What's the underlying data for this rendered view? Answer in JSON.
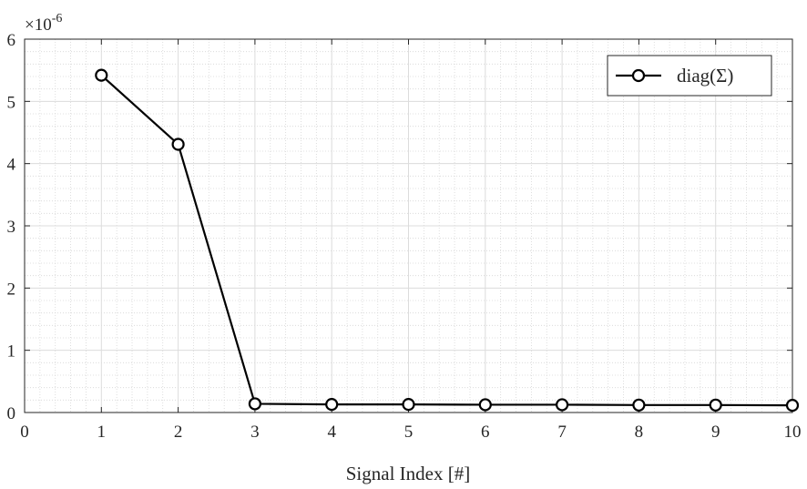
{
  "chart_data": {
    "type": "line",
    "title": "",
    "xlabel": "Signal Index [#]",
    "ylabel": "",
    "y_exponent_base": "×10",
    "y_exponent_power": "-6",
    "xlim": [
      0,
      10
    ],
    "ylim": [
      0,
      6
    ],
    "x_ticks": [
      0,
      1,
      2,
      3,
      4,
      5,
      6,
      7,
      8,
      9,
      10
    ],
    "y_ticks": [
      0,
      1,
      2,
      3,
      4,
      5,
      6
    ],
    "grid": true,
    "minor_grid": true,
    "legend_position": "top-right",
    "series": [
      {
        "name": "diag(Σ)",
        "color": "#000000",
        "marker": "circle",
        "x": [
          1,
          2,
          3,
          4,
          5,
          6,
          7,
          8,
          9,
          10
        ],
        "y": [
          5.42,
          4.31,
          0.14,
          0.13,
          0.13,
          0.125,
          0.125,
          0.12,
          0.12,
          0.115
        ]
      }
    ]
  }
}
